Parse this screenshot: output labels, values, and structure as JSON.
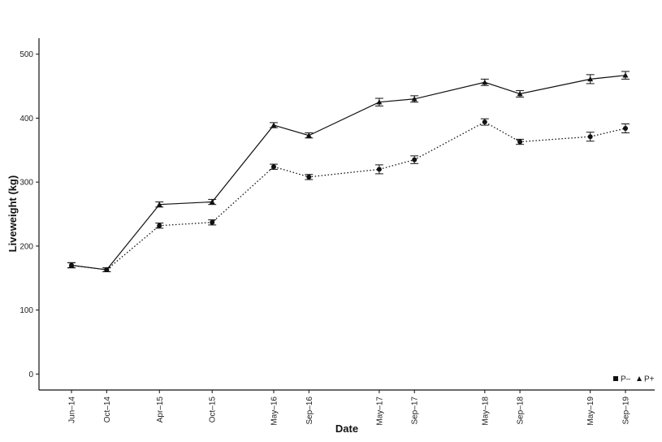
{
  "chart_data": {
    "type": "line",
    "title": "",
    "xlabel": "Date",
    "ylabel": "Liveweight (kg)",
    "ylim": [
      -25,
      525
    ],
    "yticks": [
      0,
      100,
      200,
      300,
      400,
      500
    ],
    "x": [
      "2014-06",
      "2014-10",
      "2015-04",
      "2015-10",
      "2016-05",
      "2016-09",
      "2017-05",
      "2017-09",
      "2018-05",
      "2018-09",
      "2019-05",
      "2019-09"
    ],
    "x_tick_labels": [
      "Jun–14",
      "Oct–14",
      "Apr–15",
      "Oct–15",
      "May–16",
      "Sep–16",
      "May–17",
      "Sep–17",
      "May–18",
      "Sep–18",
      "May–19",
      "Sep–19"
    ],
    "series": [
      {
        "name": "P–",
        "marker": "square",
        "linestyle": "dotted",
        "values": [
          170,
          163,
          232,
          237,
          324,
          308,
          320,
          335,
          394,
          363,
          371,
          384
        ],
        "error": [
          4,
          3,
          4,
          4,
          4,
          4,
          7,
          6,
          5,
          4,
          7,
          7
        ]
      },
      {
        "name": "P+",
        "marker": "triangle",
        "linestyle": "solid",
        "values": [
          170,
          163,
          265,
          269,
          389,
          373,
          425,
          430,
          456,
          438,
          461,
          467
        ],
        "error": [
          4,
          3,
          4,
          4,
          4,
          4,
          6,
          5,
          5,
          5,
          7,
          6
        ]
      }
    ],
    "legend_position": "bottom-right",
    "grid": false
  }
}
